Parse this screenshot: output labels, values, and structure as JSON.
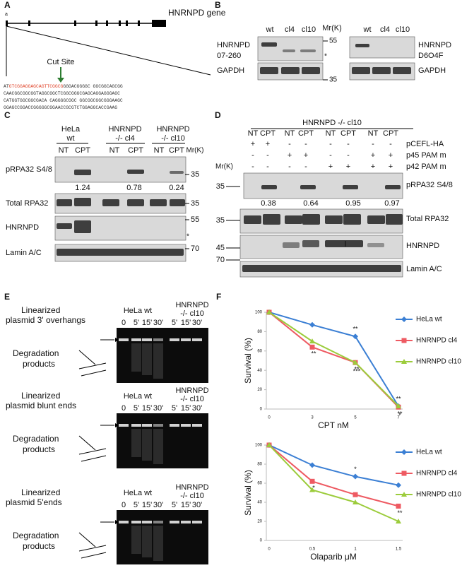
{
  "panel_a": {
    "letter": "A",
    "exon_note": "a",
    "gene": "HNRNPD gene",
    "cut_site": "Cut Site",
    "sequence": [
      [
        "AT",
        "GTCGGAGGAGCAGTTCGGCG",
        "GGGACGGGGC GGCGGCAGCGG"
      ],
      [
        "CAACGGCGGCGGTAGGCGGCTCGGCGGGCGAGCAGGAGGGAGC"
      ],
      [
        "CATGGTGGCGGCGACA CAGGGGCGGC GGCGGCGGCGGGAAGC"
      ],
      [
        "GGAGCCGGACCGGGGGCGGAACCGCGTCTGGAGGCACCGAAG"
      ]
    ]
  },
  "panel_b": {
    "letter": "B",
    "lanes_left": [
      "wt",
      "cl4",
      "cl10"
    ],
    "lanes_right": [
      "wt",
      "cl4",
      "cl10"
    ],
    "mr": "Mr(K)",
    "left_label": [
      "HNRNPD",
      "07-260"
    ],
    "right_label": [
      "HNRNPD",
      "D6O4F"
    ],
    "loading_left": "GAPDH",
    "loading_right": "GAPDH",
    "markers": [
      "55",
      "35"
    ],
    "asterisk": "*"
  },
  "panel_c": {
    "letter": "C",
    "groups": [
      [
        "HeLa",
        "wt"
      ],
      [
        "HNRNPD",
        "-/- cl4"
      ],
      [
        "HNRNPD",
        "-/- cl10"
      ]
    ],
    "lanes": [
      "NT",
      "CPT",
      "NT",
      "CPT",
      "NT",
      "CPT"
    ],
    "mr": "Mr(K)",
    "rows": [
      "pRPA32 S4/8",
      "Total RPA32",
      "HNRNPD",
      "Lamin A/C"
    ],
    "quant": [
      "1.24",
      "0.78",
      "0.24"
    ],
    "markers": [
      "35",
      "35",
      "55",
      "70"
    ],
    "asterisk": "*"
  },
  "panel_d": {
    "letter": "D",
    "header": "HNRNPD -/- cl10",
    "lanes": [
      "NT",
      "CPT",
      "NT",
      "CPT",
      "NT",
      "CPT",
      "NT",
      "CPT"
    ],
    "conditions": [
      {
        "name": "pCEFL-HA",
        "signs": [
          "+",
          "+",
          "-",
          "-",
          "-",
          "-",
          "-",
          "-"
        ]
      },
      {
        "name": "p45 PAM m",
        "signs": [
          "-",
          "-",
          "+",
          "+",
          "-",
          "-",
          "+",
          "+"
        ]
      },
      {
        "name": "p42 PAM m",
        "signs": [
          "-",
          "-",
          "-",
          "-",
          "+",
          "+",
          "+",
          "+"
        ]
      }
    ],
    "mr": "Mr(K)",
    "rows": [
      "pRPA32 S4/8",
      "Total RPA32",
      "HNRNPD",
      "Lamin A/C"
    ],
    "quant": [
      "0.38",
      "0.64",
      "0.95",
      "0.97"
    ],
    "markers": [
      "35",
      "35",
      "45",
      "70"
    ]
  },
  "panel_e": {
    "letter": "E",
    "gels": [
      {
        "substrate": [
          "Linearized",
          "plasmid 3' overhangs"
        ],
        "products": [
          "Degradation",
          "products"
        ],
        "wt": "HeLa wt",
        "ko": [
          "HNRNPD",
          "-/- cl10"
        ],
        "times": [
          "0",
          "5'",
          "15'",
          "30'",
          "5'",
          "15'",
          "30'"
        ]
      },
      {
        "substrate": [
          "Linearized",
          "plasmid blunt ends"
        ],
        "products": [
          "Degradation",
          "products"
        ],
        "wt": "HeLa wt",
        "ko": [
          "HNRNPD",
          "-/- cl10"
        ],
        "times": [
          "0",
          "5'",
          "15'",
          "30'",
          "5'",
          "15'",
          "30'"
        ]
      },
      {
        "substrate": [
          "Linearized",
          "plasmid 5'ends"
        ],
        "products": [
          "Degradation",
          "products"
        ],
        "wt": "HeLa wt",
        "ko": [
          "HNRNPD",
          "-/- cl10"
        ],
        "times": [
          "0",
          "5'",
          "15'",
          "30'",
          "5'",
          "15'",
          "30'"
        ]
      }
    ]
  },
  "panel_f": {
    "letter": "F"
  },
  "chart_data": [
    {
      "type": "line",
      "xlabel": "CPT nM",
      "ylabel": "Survival (%)",
      "categories": [
        "0",
        "3",
        "5",
        "7"
      ],
      "ylim": [
        0,
        100
      ],
      "yticks": [
        0,
        20,
        40,
        60,
        80,
        100
      ],
      "legend": "right",
      "series": [
        {
          "name": "HeLa wt",
          "color": "#3b7fd4",
          "marker": "diamond",
          "values": [
            100,
            87,
            75,
            3
          ],
          "stars": [
            null,
            null,
            "**",
            "**"
          ]
        },
        {
          "name": "HNRNPD cl4",
          "color": "#ee5a62",
          "marker": "square",
          "values": [
            100,
            64,
            48,
            2
          ],
          "stars": [
            null,
            "**",
            "**",
            "**"
          ]
        },
        {
          "name": "HNRNPD cl10",
          "color": "#9ccc3c",
          "marker": "triangle",
          "values": [
            100,
            70,
            48,
            3
          ],
          "stars": [
            null,
            null,
            "***",
            "*"
          ]
        }
      ]
    },
    {
      "type": "line",
      "xlabel": "Olaparib μM",
      "ylabel": "Survival (%)",
      "categories": [
        "0",
        "0.5",
        "1",
        "1.5"
      ],
      "ylim": [
        0,
        100
      ],
      "yticks": [
        0,
        20,
        40,
        60,
        80,
        100
      ],
      "legend": "right",
      "series": [
        {
          "name": "HeLa wt",
          "color": "#3b7fd4",
          "marker": "diamond",
          "values": [
            100,
            79,
            67,
            58
          ],
          "stars": [
            null,
            null,
            "*",
            null
          ]
        },
        {
          "name": "HNRNPD cl4",
          "color": "#ee5a62",
          "marker": "square",
          "values": [
            100,
            62,
            48,
            36
          ],
          "stars": [
            null,
            "*",
            null,
            "**"
          ]
        },
        {
          "name": "HNRNPD cl10",
          "color": "#9ccc3c",
          "marker": "triangle",
          "values": [
            100,
            53,
            40,
            20
          ],
          "stars": [
            null,
            null,
            null,
            null
          ]
        }
      ]
    }
  ]
}
